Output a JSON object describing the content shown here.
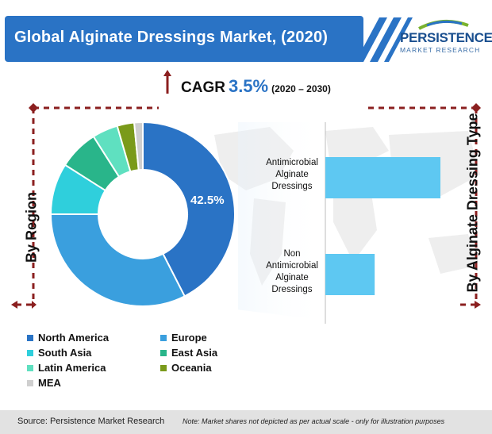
{
  "title": "Global Alginate Dressings Market, (2020)",
  "logo": {
    "name": "PERSISTENCE",
    "sub": "MARKET RESEARCH"
  },
  "cagr": {
    "label": "CAGR",
    "value": "3.5%",
    "range": "(2020 – 2030)"
  },
  "axis_labels": {
    "left": "By Region",
    "right": "By Alginate Dressing Type"
  },
  "colors": {
    "banner": "#2a73c5",
    "north_america": "#2a73c5",
    "europe": "#3a9fde",
    "south_asia": "#2fcfdc",
    "east_asia": "#29b58a",
    "latin_america": "#5fe0c0",
    "oceania": "#7a9a1a",
    "mea": "#cfcfcf",
    "bar": "#5ec8f2",
    "frame": "#8b1f1f"
  },
  "chart_data": [
    {
      "type": "pie",
      "variant": "donut",
      "slices": [
        {
          "label": "North America",
          "value": 42.5
        },
        {
          "label": "Europe",
          "value": 32.5
        },
        {
          "label": "South Asia",
          "value": 9.0
        },
        {
          "label": "East Asia",
          "value": 7.0
        },
        {
          "label": "Latin America",
          "value": 4.5
        },
        {
          "label": "Oceania",
          "value": 3.0
        },
        {
          "label": "MEA",
          "value": 1.5
        }
      ],
      "data_labels": [
        "42.5%"
      ],
      "legend": "bottom"
    },
    {
      "type": "bar",
      "orientation": "horizontal",
      "categories": [
        "Antimicrobial Alginate Dressings",
        "Non Antimicrobial Alginate Dressings"
      ],
      "values": [
        70,
        30
      ],
      "note": "Market shares not depicted as per actual scale"
    }
  ],
  "legend": [
    "North America",
    "Europe",
    "South Asia",
    "East Asia",
    "Latin America",
    "Oceania",
    "MEA"
  ],
  "bar_labels": [
    [
      "Antimicrobial",
      "Alginate",
      "Dressings"
    ],
    [
      "Non",
      "Antimicrobial",
      "Alginate",
      "Dressings"
    ]
  ],
  "footer": {
    "source": "Source: Persistence Market Research",
    "note": "Note: Market shares not depicted as per actual scale - only for illustration purposes"
  }
}
